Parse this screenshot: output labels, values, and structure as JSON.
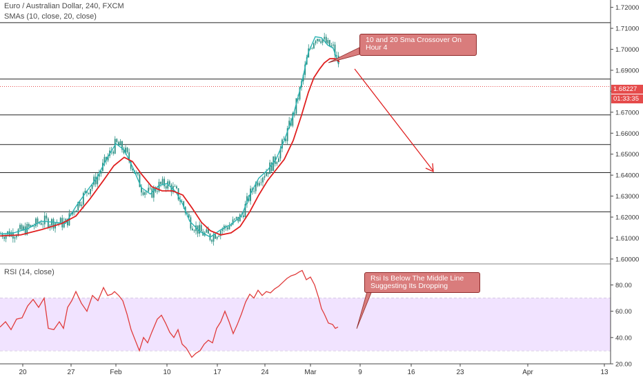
{
  "header": {
    "symbol": "Euro / Australian Dollar, 240, FXCM",
    "sma_indicator": "SMAs (10, close, 20, close)",
    "rsi_indicator": "RSI (14, close)"
  },
  "price_tag": {
    "price": "1.68227",
    "countdown": "01:33:35"
  },
  "annotations": {
    "sma_note": "10 and 20 Sma Crossover On Hour 4",
    "rsi_note": "Rsi Is Below The Middle Line Suggesting Its Dropping"
  },
  "colors": {
    "candle": "#2a8f83",
    "sma10": "#2ab3b3",
    "sma20": "#e01f1f",
    "rsi_line": "#e03b3b",
    "rsi_band": "#f1e3ff",
    "arrow": "#e02020",
    "price_tag_bg": "#e54b4b"
  },
  "chart_data": [
    {
      "type": "candlestick",
      "title": "Euro / Australian Dollar, 240, FXCM",
      "x_tick_labels": [
        "20",
        "27",
        "Feb",
        "10",
        "17",
        "24",
        "Mar",
        "9",
        "16",
        "23",
        "Apr",
        "13"
      ],
      "y_tick_labels": [
        "1.60000",
        "1.61000",
        "1.62000",
        "1.63000",
        "1.64000",
        "1.65000",
        "1.66000",
        "1.67000",
        "1.68000",
        "1.69000",
        "1.70000",
        "1.71000",
        "1.72000"
      ],
      "ylim": [
        1.598,
        1.7235
      ],
      "current_price": 1.68227,
      "horizontal_levels": [
        1.7127,
        1.6858,
        1.6687,
        1.6546,
        1.6412,
        1.6225
      ],
      "series": [
        {
          "name": "SMA 10",
          "points": [
            [
              0,
              1.612
            ],
            [
              20,
              1.6125
            ],
            [
              40,
              1.6145
            ],
            [
              60,
              1.618
            ],
            [
              80,
              1.6175
            ],
            [
              95,
              1.617
            ],
            [
              110,
              1.625
            ],
            [
              125,
              1.632
            ],
            [
              140,
              1.6385
            ],
            [
              155,
              1.648
            ],
            [
              168,
              1.655
            ],
            [
              180,
              1.652
            ],
            [
              192,
              1.644
            ],
            [
              205,
              1.634
            ],
            [
              218,
              1.631
            ],
            [
              230,
              1.635
            ],
            [
              242,
              1.636
            ],
            [
              255,
              1.632
            ],
            [
              265,
              1.626
            ],
            [
              275,
              1.618
            ],
            [
              290,
              1.613
            ],
            [
              305,
              1.6105
            ],
            [
              320,
              1.614
            ],
            [
              335,
              1.6165
            ],
            [
              350,
              1.6205
            ],
            [
              362,
              1.6305
            ],
            [
              375,
              1.6385
            ],
            [
              388,
              1.6425
            ],
            [
              400,
              1.6475
            ],
            [
              412,
              1.6565
            ],
            [
              425,
              1.6685
            ],
            [
              437,
              1.6835
            ],
            [
              447,
              1.6985
            ],
            [
              457,
              1.706
            ],
            [
              466,
              1.7055
            ],
            [
              475,
              1.702
            ],
            [
              483,
              1.7005
            ],
            [
              490,
              1.6935
            ]
          ]
        },
        {
          "name": "SMA 20",
          "points": [
            [
              0,
              1.611
            ],
            [
              30,
              1.6115
            ],
            [
              60,
              1.614
            ],
            [
              90,
              1.617
            ],
            [
              110,
              1.6205
            ],
            [
              130,
              1.6285
            ],
            [
              150,
              1.6375
            ],
            [
              165,
              1.6445
            ],
            [
              180,
              1.6485
            ],
            [
              192,
              1.6465
            ],
            [
              205,
              1.6405
            ],
            [
              220,
              1.6345
            ],
            [
              235,
              1.6325
            ],
            [
              250,
              1.6325
            ],
            [
              265,
              1.6305
            ],
            [
              278,
              1.6245
            ],
            [
              292,
              1.6175
            ],
            [
              305,
              1.6135
            ],
            [
              320,
              1.6115
            ],
            [
              335,
              1.6125
            ],
            [
              348,
              1.6155
            ],
            [
              362,
              1.6225
            ],
            [
              375,
              1.6305
            ],
            [
              388,
              1.6375
            ],
            [
              400,
              1.6425
            ],
            [
              412,
              1.6475
            ],
            [
              425,
              1.6565
            ],
            [
              437,
              1.6685
            ],
            [
              447,
              1.6795
            ],
            [
              455,
              1.6865
            ],
            [
              463,
              1.6905
            ],
            [
              470,
              1.6935
            ],
            [
              478,
              1.6955
            ],
            [
              486,
              1.6955
            ],
            [
              492,
              1.694
            ]
          ]
        },
        {
          "name": "RSI",
          "points": [
            [
              0,
              48
            ],
            [
              8,
              52
            ],
            [
              16,
              46
            ],
            [
              24,
              54
            ],
            [
              32,
              55
            ],
            [
              40,
              64
            ],
            [
              48,
              69
            ],
            [
              56,
              63
            ],
            [
              64,
              70
            ],
            [
              70,
              47
            ],
            [
              78,
              46
            ],
            [
              86,
              52
            ],
            [
              92,
              47
            ],
            [
              98,
              63
            ],
            [
              104,
              68
            ],
            [
              110,
              75
            ],
            [
              118,
              66
            ],
            [
              126,
              60
            ],
            [
              134,
              72
            ],
            [
              142,
              68
            ],
            [
              150,
              78
            ],
            [
              156,
              72
            ],
            [
              162,
              73
            ],
            [
              166,
              75
            ],
            [
              172,
              72
            ],
            [
              178,
              68
            ],
            [
              184,
              58
            ],
            [
              190,
              46
            ],
            [
              196,
              38
            ],
            [
              202,
              30
            ],
            [
              208,
              40
            ],
            [
              214,
              36
            ],
            [
              220,
              44
            ],
            [
              228,
              54
            ],
            [
              234,
              57
            ],
            [
              240,
              51
            ],
            [
              246,
              44
            ],
            [
              252,
              40
            ],
            [
              258,
              46
            ],
            [
              264,
              35
            ],
            [
              270,
              32
            ],
            [
              278,
              25
            ],
            [
              284,
              28
            ],
            [
              290,
              30
            ],
            [
              296,
              35
            ],
            [
              302,
              38
            ],
            [
              308,
              36
            ],
            [
              314,
              47
            ],
            [
              320,
              52
            ],
            [
              326,
              60
            ],
            [
              332,
              52
            ],
            [
              338,
              43
            ],
            [
              344,
              50
            ],
            [
              350,
              58
            ],
            [
              356,
              67
            ],
            [
              362,
              73
            ],
            [
              368,
              70
            ],
            [
              374,
              76
            ],
            [
              380,
              72
            ],
            [
              386,
              75
            ],
            [
              392,
              74
            ],
            [
              398,
              77
            ],
            [
              404,
              79
            ],
            [
              410,
              82
            ],
            [
              416,
              85
            ],
            [
              422,
              87
            ],
            [
              428,
              88
            ],
            [
              434,
              90
            ],
            [
              438,
              91
            ],
            [
              444,
              84
            ],
            [
              450,
              86
            ],
            [
              456,
              80
            ],
            [
              462,
              70
            ],
            [
              466,
              62
            ],
            [
              470,
              58
            ],
            [
              476,
              51
            ],
            [
              482,
              50
            ],
            [
              486,
              47
            ],
            [
              490,
              48
            ]
          ]
        }
      ]
    },
    {
      "type": "line",
      "title": "RSI (14, close)",
      "y_tick_labels": [
        "20.00",
        "40.00",
        "60.00",
        "80.00"
      ],
      "ylim": [
        20,
        96
      ],
      "band": [
        30,
        70
      ],
      "midline": 50
    }
  ]
}
